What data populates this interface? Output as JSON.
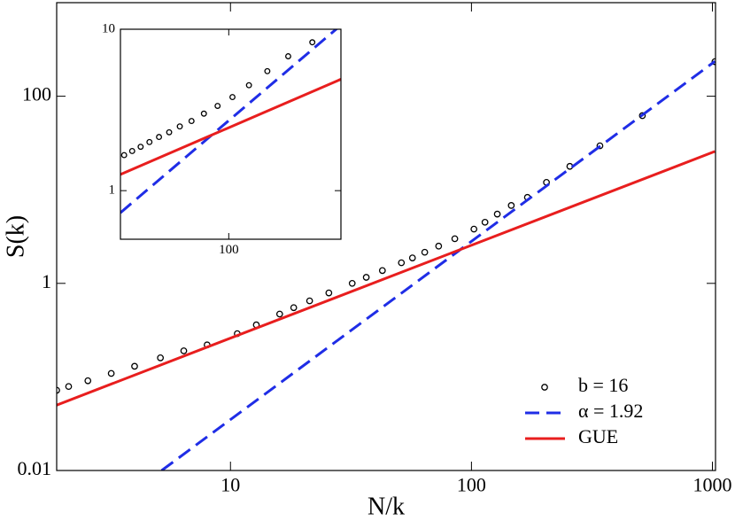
{
  "chart_data": [
    {
      "type": "scatter",
      "x_label": "N/k",
      "y_label": "S(k)",
      "log_x": true,
      "log_y": true,
      "xlim": [
        1.9,
        1030
      ],
      "ylim": [
        0.01,
        1000
      ],
      "xticks": [
        10,
        100,
        1000
      ],
      "yticks": [
        0.01,
        1,
        100
      ],
      "legend": "lower right",
      "series": [
        {
          "name": "b = 16",
          "color": "#000000",
          "mode": "markers",
          "x": [
            1024,
            512,
            341.3,
            256,
            204.8,
            170.7,
            146.3,
            128,
            113.8,
            102.4,
            85.3,
            73.1,
            64,
            56.9,
            51.2,
            42.7,
            36.6,
            32,
            25.6,
            21.3,
            18.3,
            16,
            12.8,
            10.67,
            8,
            6.4,
            5.12,
            4,
            3.2,
            2.56,
            2.13,
            1.9
          ],
          "values": [
            234,
            62,
            29.5,
            17.8,
            12,
            8.3,
            6.8,
            5.5,
            4.5,
            3.8,
            3.0,
            2.5,
            2.15,
            1.87,
            1.66,
            1.37,
            1.16,
            1.0,
            0.79,
            0.65,
            0.55,
            0.47,
            0.36,
            0.29,
            0.22,
            0.19,
            0.16,
            0.13,
            0.109,
            0.091,
            0.079,
            0.072
          ]
        },
        {
          "name": "α = 1.92",
          "color": "#1f2de6",
          "mode": "dashed",
          "x": [
            5.18,
            1024
          ],
          "values": [
            0.01,
            236
          ]
        },
        {
          "name": "GUE",
          "color": "#e81e1e",
          "mode": "solid",
          "x": [
            1.9,
            1024
          ],
          "values": [
            0.05,
            25.7
          ]
        }
      ]
    },
    {
      "type": "scatter",
      "log_x": true,
      "log_y": true,
      "xlim": [
        50,
        205
      ],
      "ylim": [
        0.5,
        10
      ],
      "xticks": [
        100
      ],
      "yticks": [
        1,
        10
      ],
      "series": [
        {
          "color": "#000000",
          "mode": "markers",
          "x": [
            170.7,
            146.3,
            128,
            113.8,
            102.4,
            93.1,
            85.3,
            78.8,
            73.1,
            68.3,
            64,
            60.2,
            56.9,
            53.9,
            51.2
          ],
          "values": [
            8.3,
            6.8,
            5.5,
            4.5,
            3.8,
            3.35,
            3.0,
            2.7,
            2.5,
            2.3,
            2.15,
            2.0,
            1.87,
            1.76,
            1.66
          ]
        },
        {
          "color": "#1f2de6",
          "mode": "dashed",
          "x": [
            50,
            205
          ],
          "values": [
            0.73,
            10.6
          ]
        },
        {
          "color": "#e81e1e",
          "mode": "solid",
          "x": [
            50,
            205
          ],
          "values": [
            1.26,
            4.9
          ]
        }
      ]
    }
  ]
}
